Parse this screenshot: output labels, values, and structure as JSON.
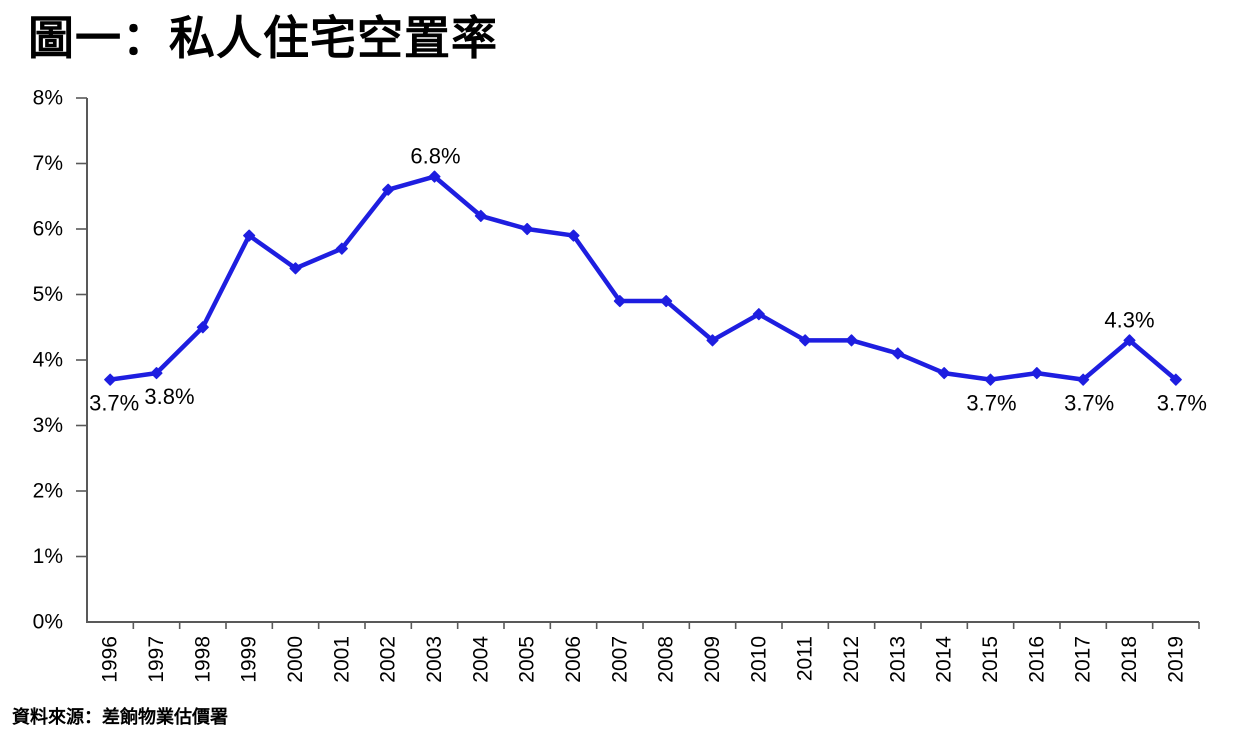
{
  "page": {
    "title": "圖一：私人住宅空置率",
    "source_note": "資料來源：差餉物業估價署"
  },
  "chart_data": {
    "type": "line",
    "title": "圖一：私人住宅空置率",
    "source": "資料來源：差餉物業估價署",
    "categories": [
      "1996",
      "1997",
      "1998",
      "1999",
      "2000",
      "2001",
      "2002",
      "2003",
      "2004",
      "2005",
      "2006",
      "2007",
      "2008",
      "2009",
      "2010",
      "2011",
      "2012",
      "2013",
      "2014",
      "2015",
      "2016",
      "2017",
      "2018",
      "2019"
    ],
    "values": [
      3.7,
      3.8,
      4.5,
      5.9,
      5.4,
      5.7,
      6.6,
      6.8,
      6.2,
      6.0,
      5.9,
      4.9,
      4.9,
      4.3,
      4.7,
      4.3,
      4.3,
      4.1,
      3.8,
      3.7,
      3.8,
      3.7,
      4.3,
      3.7
    ],
    "xlabel": "",
    "ylabel": "",
    "ylim": [
      0,
      8
    ],
    "ytick_labels": [
      "0%",
      "1%",
      "2%",
      "3%",
      "4%",
      "5%",
      "6%",
      "7%",
      "8%"
    ],
    "grid": false,
    "legend": "none",
    "marker": "diamond",
    "line_color": "#1E1EE0",
    "axis_color": "#595959",
    "label_color": "#000000",
    "annotations": [
      {
        "category": "1996",
        "text": "3.7%",
        "placement": "below",
        "dx": 4
      },
      {
        "category": "1997",
        "text": "3.8%",
        "placement": "below",
        "dx": 13
      },
      {
        "category": "2003",
        "text": "6.8%",
        "placement": "above",
        "dx": 1
      },
      {
        "category": "2015",
        "text": "3.7%",
        "placement": "below",
        "dx": 1
      },
      {
        "category": "2017",
        "text": "3.7%",
        "placement": "below",
        "dx": 6
      },
      {
        "category": "2018",
        "text": "4.3%",
        "placement": "above",
        "dx": 0
      },
      {
        "category": "2019",
        "text": "3.7%",
        "placement": "below",
        "dx": 6
      }
    ]
  }
}
